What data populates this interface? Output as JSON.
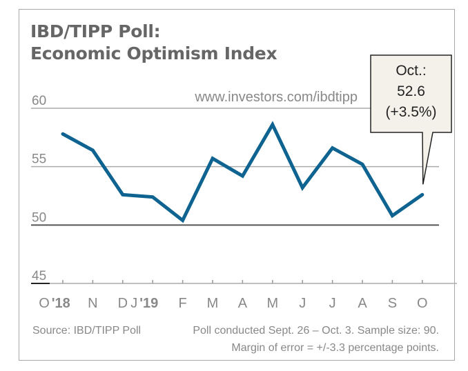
{
  "chart_data": {
    "type": "line",
    "title": "IBD/TIPP Poll:",
    "subtitle": "Economic Optimism Index",
    "xlabel": "",
    "ylabel": "",
    "ylim": [
      45,
      60
    ],
    "yticks": [
      45,
      50,
      55,
      60
    ],
    "grid": true,
    "categories": [
      "O",
      "N",
      "D",
      "J",
      "F",
      "M",
      "A",
      "M",
      "J",
      "J",
      "A",
      "S",
      "O"
    ],
    "category_labels": [
      {
        "text": "O",
        "year": "'18"
      },
      {
        "text": "N",
        "year": ""
      },
      {
        "text": "D",
        "year": ""
      },
      {
        "text": "J",
        "year": "'19"
      },
      {
        "text": "F",
        "year": ""
      },
      {
        "text": "M",
        "year": ""
      },
      {
        "text": "A",
        "year": ""
      },
      {
        "text": "M",
        "year": ""
      },
      {
        "text": "J",
        "year": ""
      },
      {
        "text": "J",
        "year": ""
      },
      {
        "text": "A",
        "year": ""
      },
      {
        "text": "S",
        "year": ""
      },
      {
        "text": "O",
        "year": ""
      }
    ],
    "series": [
      {
        "name": "Economic Optimism Index",
        "color": "#0e6390",
        "values": [
          57.8,
          56.4,
          52.6,
          52.4,
          50.4,
          55.7,
          54.2,
          58.6,
          53.2,
          56.6,
          55.2,
          50.8,
          52.6
        ]
      }
    ],
    "baseline": 50,
    "annotation": {
      "lines": [
        "Oct.:",
        "52.6",
        "(+3.5%)"
      ],
      "target_index": 12,
      "background": "#f3f1ea"
    },
    "url": "www.investors.com/ibdtipp"
  },
  "footer": {
    "source": "Source: IBD/TIPP Poll",
    "note1": "Poll conducted Sept. 26 – Oct. 3. Sample size: 90.",
    "note2": "Margin of error = +/-3.3 percentage points."
  }
}
